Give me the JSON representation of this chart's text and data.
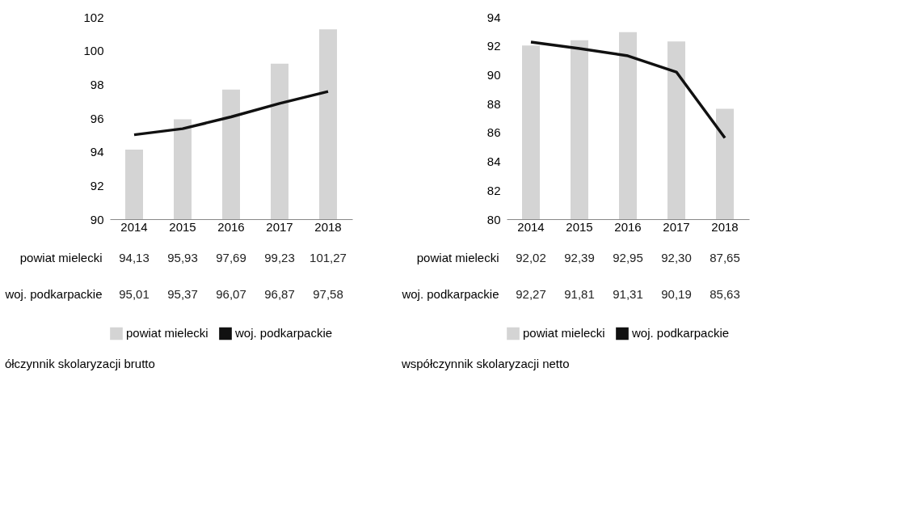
{
  "chart_data": [
    {
      "type": "bar",
      "title": "ółczynnik skolaryzacji brutto",
      "categories": [
        "2014",
        "2015",
        "2016",
        "2017",
        "2018"
      ],
      "series": [
        {
          "name": "powiat mielecki",
          "color": "#d4d4d4",
          "values": [
            94.13,
            95.93,
            97.69,
            99.23,
            101.27
          ],
          "value_labels": [
            "94,13",
            "95,93",
            "97,69",
            "99,23",
            "101,27"
          ]
        },
        {
          "name": "woj. podkarpackie",
          "type": "line",
          "color": "#111111",
          "values": [
            95.01,
            95.37,
            96.07,
            96.87,
            97.58
          ],
          "value_labels": [
            "95,01",
            "95,37",
            "96,07",
            "96,87",
            "97,58"
          ]
        }
      ],
      "ylim": [
        90,
        102
      ],
      "yticks": [
        90,
        92,
        94,
        96,
        98,
        100,
        102
      ],
      "grid": false,
      "legend": "bottom"
    },
    {
      "type": "bar",
      "title": "współczynnik skolaryzacji netto",
      "categories": [
        "2014",
        "2015",
        "2016",
        "2017",
        "2018"
      ],
      "series": [
        {
          "name": "powiat mielecki",
          "color": "#d4d4d4",
          "values": [
            92.02,
            92.39,
            92.95,
            92.3,
            87.65
          ],
          "value_labels": [
            "92,02",
            "92,39",
            "92,95",
            "92,30",
            "87,65"
          ]
        },
        {
          "name": "woj. podkarpackie",
          "type": "line",
          "color": "#111111",
          "values": [
            92.27,
            91.81,
            91.31,
            90.19,
            85.63
          ],
          "value_labels": [
            "92,27",
            "91,81",
            "91,31",
            "90,19",
            "85,63"
          ]
        }
      ],
      "ylim": [
        80,
        94
      ],
      "yticks": [
        80,
        82,
        84,
        86,
        88,
        90,
        92,
        94
      ],
      "grid": false,
      "legend": "bottom"
    }
  ]
}
